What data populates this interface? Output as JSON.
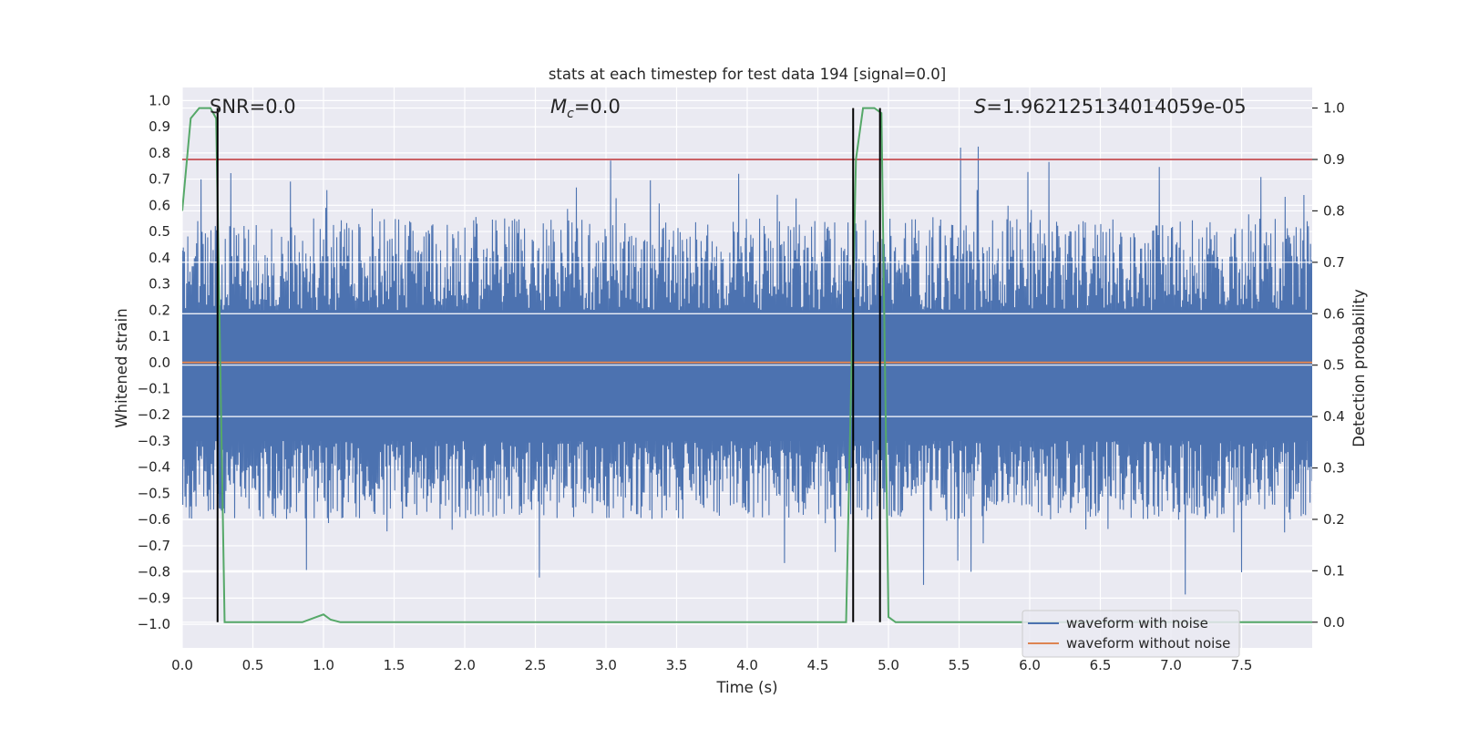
{
  "chart_data": {
    "type": "line",
    "title": "stats at each timestep for test data 194 [signal=0.0]",
    "xlabel": "Time (s)",
    "ylabel": "Whitened strain",
    "y2label": "Detection probability",
    "xlim": [
      0.0,
      8.0
    ],
    "ylim": [
      -1.09,
      1.05
    ],
    "y2lim": [
      -0.05,
      1.04
    ],
    "x_ticks": [
      0.0,
      0.5,
      1.0,
      1.5,
      2.0,
      2.5,
      3.0,
      3.5,
      4.0,
      4.5,
      5.0,
      5.5,
      6.0,
      6.5,
      7.0,
      7.5
    ],
    "x_tick_labels": [
      "0.0",
      "0.5",
      "1.0",
      "1.5",
      "2.0",
      "2.5",
      "3.0",
      "3.5",
      "4.0",
      "4.5",
      "5.0",
      "5.5",
      "6.0",
      "6.5",
      "7.0",
      "7.5"
    ],
    "y_ticks": [
      1.0,
      0.9,
      0.8,
      0.7,
      0.6,
      0.5,
      0.4,
      0.3,
      0.2,
      0.1,
      0.0,
      -0.1,
      -0.2,
      -0.3,
      -0.4,
      -0.5,
      -0.6,
      -0.7,
      -0.8,
      -0.9,
      -1.0
    ],
    "y_tick_labels": [
      "1.0",
      "0.9",
      "0.8",
      "0.7",
      "0.6",
      "0.5",
      "0.4",
      "0.3",
      "0.2",
      "0.1",
      "0.0",
      "−0.1",
      "−0.2",
      "−0.3",
      "−0.4",
      "−0.5",
      "−0.6",
      "−0.7",
      "−0.8",
      "−0.9",
      "−1.0"
    ],
    "y2_ticks": [
      1.0,
      0.9,
      0.8,
      0.7,
      0.6,
      0.5,
      0.4,
      0.3,
      0.2,
      0.1,
      0.0
    ],
    "y2_tick_labels": [
      "1.0",
      "0.9",
      "0.8",
      "0.7",
      "0.6",
      "0.5",
      "0.4",
      "0.3",
      "0.2",
      "0.1",
      "0.0"
    ],
    "annotations": {
      "snr": "SNR=0.0",
      "mc_symbol": "M",
      "mc_sub": "c",
      "mc_value": "=0.0",
      "s_symbol": "S",
      "s_value": "=1.962125134014059e-05"
    },
    "noise_waveform": {
      "name": "waveform with noise",
      "color": "#4c72b0",
      "samples": 2048,
      "typical_upper": 0.2,
      "typical_lower": -0.3,
      "peak_upper": 0.92,
      "peak_lower": -0.97
    },
    "clean_waveform": {
      "name": "waveform without noise",
      "color": "#dd8452",
      "value": 0.0
    },
    "threshold": {
      "color": "#c44e52",
      "value": 0.9
    },
    "detection_probability": {
      "color": "#55a868",
      "x": [
        0.0,
        0.06,
        0.12,
        0.2,
        0.24,
        0.3,
        0.85,
        0.95,
        1.0,
        1.05,
        1.12,
        4.7,
        4.77,
        4.82,
        4.9,
        4.95,
        5.0,
        5.05,
        8.0
      ],
      "y": [
        0.8,
        0.98,
        1.0,
        1.0,
        0.98,
        0.0,
        0.0,
        0.01,
        0.015,
        0.005,
        0.0,
        0.0,
        0.9,
        1.0,
        1.0,
        0.99,
        0.01,
        0.0,
        0.0
      ]
    },
    "detection_markers": {
      "color": "#000000",
      "x": [
        0.25,
        4.75,
        4.94
      ],
      "y_top": 1.0,
      "y_bottom": 0.0
    },
    "grid": true,
    "legend_position": "lower-right"
  }
}
